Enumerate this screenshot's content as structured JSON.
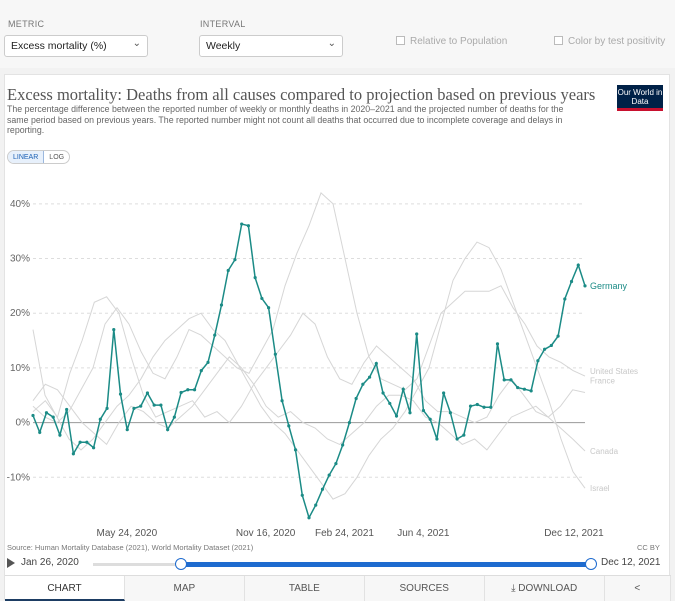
{
  "controls": {
    "metric_label": "METRIC",
    "metric_value": "Excess mortality (%)",
    "interval_label": "INTERVAL",
    "interval_value": "Weekly",
    "relative_label": "Relative to Population",
    "color_label": "Color by test positivity"
  },
  "header": {
    "title": "Excess mortality: Deaths from all causes compared to projection based on previous years",
    "subtitle": "The percentage difference between the reported number of weekly or monthly deaths in 2020–2021 and the projected number of deaths for the same period based on previous years. The reported number might not count all deaths that occurred due to incomplete coverage and delays in reporting.",
    "logo": "Our World in Data"
  },
  "scale": {
    "linear": "LINEAR",
    "log": "LOG"
  },
  "chart_data": {
    "type": "line",
    "y_ticks": [
      "-10%",
      "0%",
      "10%",
      "20%",
      "30%",
      "40%"
    ],
    "x_ticks": [
      "May 24, 2020",
      "Nov 16, 2020",
      "Feb 24, 2021",
      "Jun 4, 2021",
      "Dec 12, 2021"
    ],
    "ylim": [
      -18,
      46
    ],
    "xlim": [
      "2020-01-26",
      "2021-12-26"
    ],
    "grid": true,
    "series": [
      {
        "name": "Germany",
        "color": "#1b8b86",
        "highlight": true,
        "values": [
          1.3,
          -1.8,
          1.8,
          1.0,
          -2.3,
          2.4,
          -5.7,
          -3.6,
          -3.6,
          -4.6,
          0.6,
          2.6,
          17.0,
          5.2,
          -1.3,
          2.6,
          3.0,
          5.4,
          3.2,
          3.2,
          -1.3,
          1.0,
          5.5,
          6.0,
          6.0,
          9.5,
          11.0,
          16.0,
          21.5,
          27.8,
          29.8,
          36.3,
          36.0,
          26.5,
          22.7,
          21.0,
          12.5,
          4.0,
          -0.6,
          -5.0,
          -13.3,
          -17.4,
          -15.1,
          -12.2,
          -9.6,
          -7.5,
          -4.1,
          0.0,
          4.4,
          7.0,
          8.3,
          10.8,
          5.4,
          3.5,
          1.2,
          6.1,
          1.8,
          16.2,
          2.2,
          0.6,
          -3.0,
          5.4,
          1.8,
          -3.0,
          -2.3,
          3.0,
          3.3,
          2.8,
          2.8,
          14.4,
          7.8,
          7.8,
          6.4,
          6.1,
          5.8,
          11.3,
          13.4,
          14.1,
          15.8,
          22.6,
          25.8,
          28.8,
          25.0
        ]
      },
      {
        "name": "United States",
        "color": "#d6d6d6",
        "values": [
          3,
          1,
          0,
          2,
          6,
          10,
          18,
          21,
          18,
          13,
          9,
          8,
          12,
          17,
          16,
          14,
          12,
          10,
          9,
          13,
          17,
          25,
          31,
          36,
          42,
          40,
          30,
          20,
          12,
          8,
          7,
          6,
          8,
          14,
          20,
          22,
          24,
          24,
          24,
          25,
          21,
          18,
          14,
          12,
          11,
          9.5,
          8.5
        ]
      },
      {
        "name": "France",
        "color": "#d6d6d6",
        "values": [
          2,
          4,
          1,
          9,
          15,
          22,
          23,
          20,
          12,
          5,
          1,
          2,
          3,
          4,
          1,
          2,
          0,
          3,
          7,
          10,
          13,
          16,
          20,
          18,
          12,
          8,
          7,
          11,
          14,
          12,
          10,
          8,
          4,
          2,
          2,
          1,
          0,
          1,
          5,
          8,
          5,
          2,
          1,
          3,
          6,
          5.5
        ]
      },
      {
        "name": "Canada",
        "color": "#d6d6d6",
        "values": [
          4,
          7,
          6,
          3,
          0,
          -2,
          -4,
          0,
          3,
          2,
          0,
          -1,
          1,
          3,
          6,
          9,
          12,
          10,
          7,
          3,
          1,
          2,
          0,
          -1,
          -3,
          -4,
          -2,
          0,
          3,
          5,
          5,
          4,
          1,
          0,
          -2,
          -4,
          -3,
          -5,
          -2,
          1,
          2,
          3,
          1,
          -1,
          -3,
          -5.2
        ]
      },
      {
        "name": "Israel",
        "color": "#d6d6d6",
        "values": [
          17,
          5,
          1,
          -3,
          -5,
          -3,
          0,
          3,
          5,
          8,
          12,
          15,
          17,
          19,
          20,
          17,
          15,
          11,
          7,
          3,
          0,
          -2,
          -5,
          -8,
          -11,
          -14,
          -13,
          -10,
          -6,
          -3,
          -1,
          2,
          6,
          10,
          18,
          26,
          30,
          33,
          32,
          28,
          22,
          16,
          10,
          4,
          -3,
          -9,
          -12
        ]
      }
    ]
  },
  "footer": {
    "source": "Source: Human Mortality Database (2021), World Mortality Dataset (2021)",
    "license": "CC BY",
    "start_date": "Jan 26, 2020",
    "end_date": "Dec 12, 2021"
  },
  "tabs": [
    "CHART",
    "MAP",
    "TABLE",
    "SOURCES",
    "⤓ DOWNLOAD",
    "<"
  ]
}
